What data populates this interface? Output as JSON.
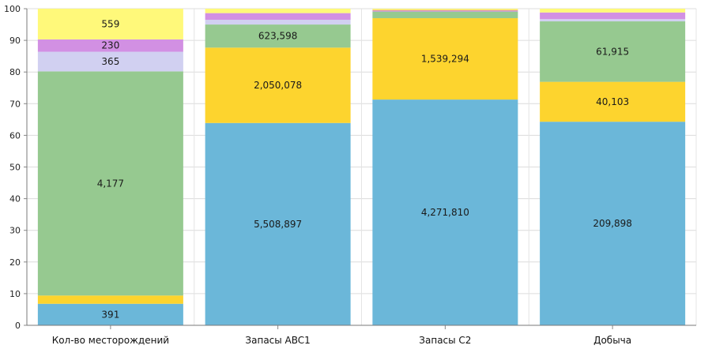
{
  "chart_data": {
    "type": "bar",
    "stacked": true,
    "orientation": "vertical",
    "categories": [
      "Кол-во месторождений",
      "Запасы ABC1",
      "Запасы C2",
      "Добыча"
    ],
    "ylim": [
      0,
      100
    ],
    "yticks": [
      0,
      10,
      20,
      30,
      40,
      50,
      60,
      70,
      80,
      90,
      100
    ],
    "grid": true,
    "series": [
      {
        "color": "#6bb7d9",
        "values": [
          6.8,
          63.9,
          71.3,
          64.3
        ],
        "labels": [
          "391",
          "5,508,897",
          "4,271,810",
          "209,898"
        ]
      },
      {
        "color": "#fdd42e",
        "values": [
          2.6,
          23.8,
          25.7,
          12.6
        ],
        "labels": [
          "",
          "2,050,078",
          "1,539,294",
          "40,103"
        ]
      },
      {
        "color": "#96c990",
        "values": [
          70.8,
          7.3,
          2.1,
          19.1
        ],
        "labels": [
          "4,177",
          "623,598",
          "",
          "61,915"
        ]
      },
      {
        "color": "#d1d0f1",
        "values": [
          6.2,
          1.5,
          0.0,
          0.7
        ],
        "labels": [
          "365",
          "",
          "",
          ""
        ]
      },
      {
        "color": "#d290e3",
        "values": [
          3.9,
          2.1,
          0.3,
          2.1
        ],
        "labels": [
          "230",
          "",
          "",
          ""
        ]
      },
      {
        "color": "#e8966a",
        "values": [
          0.0,
          0.0,
          0.2,
          0.0
        ],
        "labels": [
          "",
          "",
          "",
          ""
        ]
      },
      {
        "color": "#fff97a",
        "values": [
          9.7,
          1.4,
          0.4,
          1.2
        ],
        "labels": [
          "559",
          "",
          "",
          ""
        ]
      }
    ]
  }
}
